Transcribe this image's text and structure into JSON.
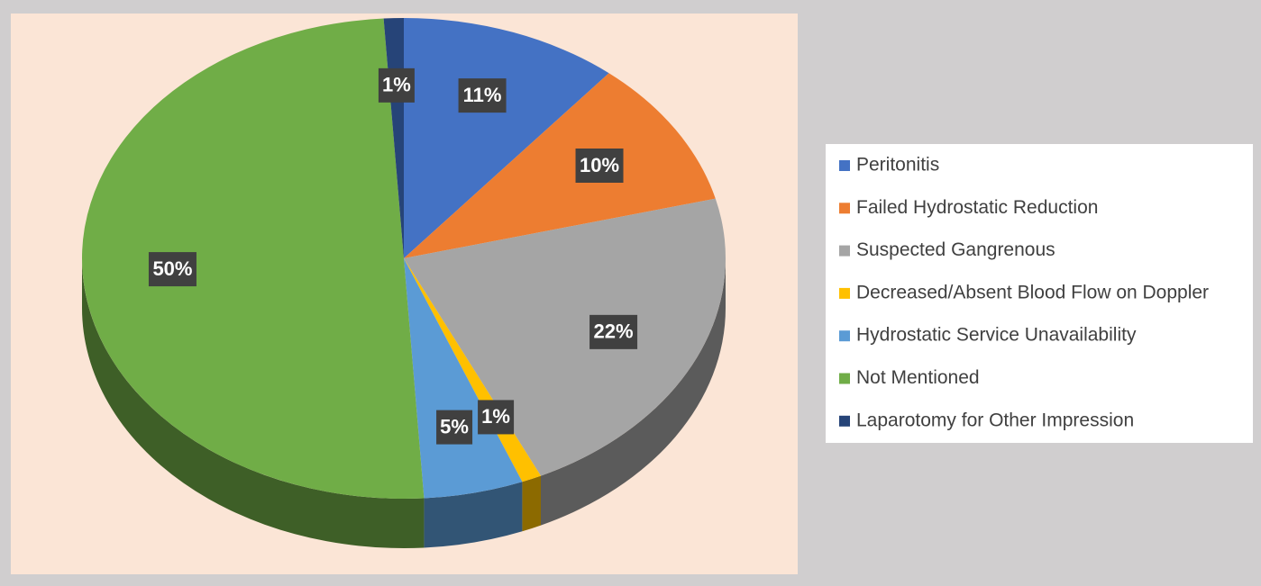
{
  "chart_data": {
    "type": "pie",
    "categories": [
      "Peritonitis",
      "Failed Hydrostatic Reduction",
      "Suspected Gangrenous",
      "Decreased/Absent Blood Flow on Doppler",
      "Hydrostatic Service Unavailability",
      "Not Mentioned",
      "Laparotomy for Other Impression"
    ],
    "values": [
      11,
      10,
      22,
      1,
      5,
      50,
      1
    ],
    "value_labels": [
      "11%",
      "10%",
      "22%",
      "1%",
      "5%",
      "50%",
      "1%"
    ],
    "colors": [
      "#4472c4",
      "#ed7d31",
      "#a5a5a5",
      "#ffc000",
      "#5b9bd5",
      "#70ad47",
      "#264478"
    ],
    "legend": "right"
  }
}
